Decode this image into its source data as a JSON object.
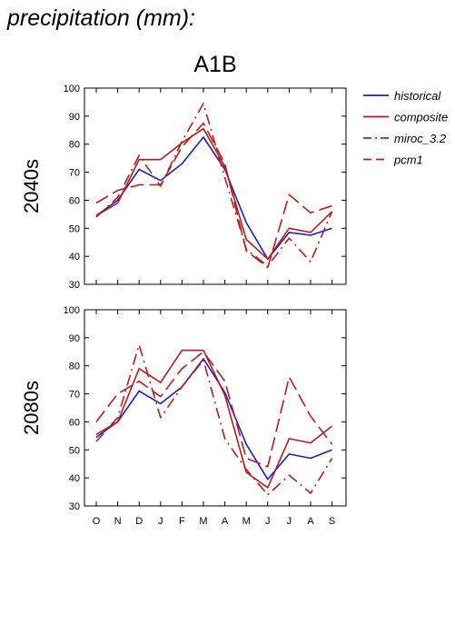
{
  "page": {
    "title": "precipitation (mm):"
  },
  "colors": {
    "historical": "#1f1fbf",
    "model": "#b81c1c"
  },
  "chart_data": [
    {
      "type": "line",
      "title": "A1B",
      "panel_label": "2040s",
      "ylim": [
        30,
        100
      ],
      "yticks": [
        30,
        40,
        50,
        60,
        70,
        80,
        90,
        100
      ],
      "categories": [
        "O",
        "N",
        "D",
        "J",
        "F",
        "M",
        "A",
        "M",
        "J",
        "J",
        "A",
        "S"
      ],
      "legend_position": "right",
      "grid": false,
      "series": [
        {
          "name": "historical",
          "style": "solid",
          "values": [
            54.5,
            60,
            71,
            67,
            73,
            82.5,
            71,
            52,
            39,
            48.5,
            47.5,
            50
          ]
        },
        {
          "name": "composite",
          "style": "solid",
          "values": [
            54.5,
            59,
            74.5,
            74.5,
            80.5,
            85.5,
            72,
            46,
            39,
            50,
            48.5,
            56
          ]
        },
        {
          "name": "miroc_3.2",
          "style": "dashdot",
          "values": [
            54,
            61,
            76,
            65,
            81,
            94.5,
            68,
            42.5,
            36.5,
            46.5,
            38,
            56
          ]
        },
        {
          "name": "pcm1",
          "style": "dashed",
          "values": [
            59,
            63.5,
            65.5,
            65.5,
            79,
            87.5,
            73,
            42,
            36,
            62,
            55.5,
            58
          ]
        }
      ]
    },
    {
      "type": "line",
      "title": "",
      "panel_label": "2080s",
      "ylim": [
        30,
        100
      ],
      "yticks": [
        30,
        40,
        50,
        60,
        70,
        80,
        90,
        100
      ],
      "categories": [
        "O",
        "N",
        "D",
        "J",
        "F",
        "M",
        "A",
        "M",
        "J",
        "J",
        "A",
        "S"
      ],
      "grid": false,
      "series": [
        {
          "name": "historical",
          "style": "solid",
          "values": [
            54.5,
            60,
            71,
            66.5,
            72.5,
            82.5,
            70.5,
            52,
            39.5,
            48.5,
            47,
            50
          ]
        },
        {
          "name": "composite",
          "style": "solid",
          "values": [
            55.5,
            60,
            79,
            74,
            85.5,
            85.5,
            69.5,
            42,
            36.5,
            54,
            52.5,
            58.5
          ]
        },
        {
          "name": "miroc_3.2",
          "style": "dashdot",
          "values": [
            53,
            61.5,
            87.5,
            61.5,
            72.5,
            82,
            54,
            43,
            34,
            41,
            34.5,
            47
          ]
        },
        {
          "name": "pcm1",
          "style": "dashed",
          "values": [
            60,
            70,
            74.5,
            69,
            79,
            85,
            74.5,
            47,
            44,
            76,
            62,
            52
          ]
        }
      ]
    }
  ]
}
